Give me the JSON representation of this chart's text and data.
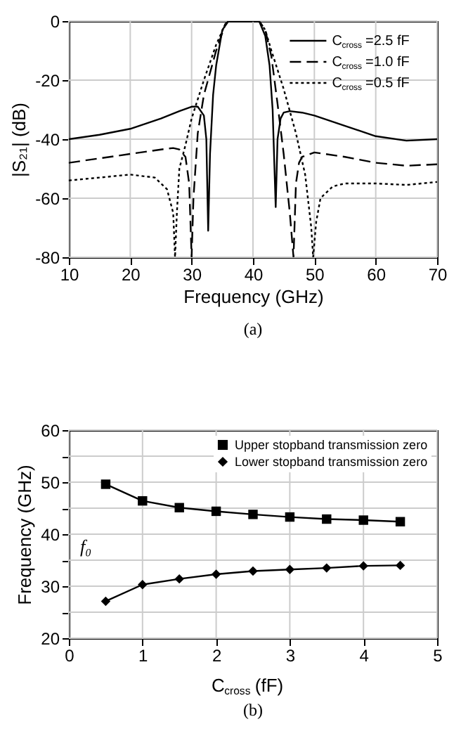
{
  "chart_data": [
    {
      "type": "line",
      "xlabel": "Frequency (GHz)",
      "ylabel": "|S₂₁| (dB)",
      "xlim": [
        10,
        70
      ],
      "ylim": [
        -80,
        0
      ],
      "xticks": [
        10,
        20,
        30,
        40,
        50,
        60,
        70
      ],
      "yticks": [
        -80,
        -60,
        -40,
        -20,
        0
      ],
      "grid": true,
      "legend": "top right",
      "marker": "none",
      "annotations": [
        "(a)"
      ],
      "series": [
        {
          "name": "C$_{cross}$=2.5 fF",
          "color": "#000000",
          "line_style": "solid",
          "x": [
            10,
            15,
            20,
            25,
            28,
            30,
            31,
            32,
            32.4,
            32.7,
            33,
            33.5,
            34,
            35,
            36,
            38,
            40,
            41,
            42,
            42.7,
            43.2,
            43.7,
            44,
            44.5,
            45,
            46,
            48,
            50,
            55,
            60,
            65,
            70
          ],
          "values": [
            -40,
            -38.5,
            -36.5,
            -33,
            -30.5,
            -29,
            -29,
            -32,
            -40,
            -71,
            -45,
            -25,
            -15,
            -3,
            0,
            0,
            0,
            0,
            -5,
            -15,
            -30,
            -63,
            -40,
            -33,
            -31,
            -30.5,
            -31,
            -32,
            -35.5,
            -39,
            -40.5,
            -40
          ]
        },
        {
          "name": "C$_{cross}$=1.0 fF",
          "color": "#000000",
          "line_style": "dashed",
          "x": [
            10,
            15,
            20,
            25,
            27,
            28,
            29,
            29.6,
            30,
            30.3,
            31,
            32,
            34,
            35.5,
            36,
            38,
            40,
            41,
            42,
            43,
            44,
            45,
            46,
            46.6,
            47,
            47.5,
            48,
            50,
            55,
            60,
            65,
            70
          ],
          "values": [
            -48,
            -46.5,
            -45,
            -43.5,
            -43,
            -43.5,
            -46,
            -55,
            -80,
            -60,
            -38,
            -25,
            -10,
            -1,
            0,
            0,
            0,
            0,
            -3,
            -12,
            -28,
            -45,
            -65,
            -80,
            -55,
            -48,
            -46,
            -44.5,
            -46,
            -48,
            -49,
            -48.5
          ]
        },
        {
          "name": "C$_{cross}$=0.5 fF",
          "color": "#000000",
          "line_style": "dotted",
          "x": [
            10,
            15,
            20,
            24,
            26,
            27,
            27.3,
            27.6,
            28,
            29,
            30,
            32,
            34,
            35.5,
            36,
            38,
            40,
            41,
            42,
            43,
            45,
            47,
            48.5,
            49.5,
            49.8,
            50.3,
            51,
            53,
            55,
            60,
            65,
            70
          ],
          "values": [
            -54,
            -53,
            -52,
            -53,
            -57,
            -65,
            -80,
            -65,
            -50,
            -42,
            -33,
            -20,
            -8,
            -1,
            0,
            0,
            0,
            0,
            -3,
            -10,
            -23,
            -38,
            -52,
            -70,
            -80,
            -68,
            -60,
            -56,
            -55,
            -55,
            -55.5,
            -54.5
          ]
        }
      ]
    },
    {
      "type": "line",
      "xlabel": "C$_{cross}$ (fF)",
      "ylabel": "Frequency (GHz)",
      "xlim": [
        0,
        5
      ],
      "ylim": [
        20,
        60
      ],
      "xticks": [
        0,
        1,
        2,
        3,
        4,
        5
      ],
      "yticks": [
        20,
        {
          "value": 25,
          "label": null
        },
        30,
        {
          "value": 35,
          "label": null
        },
        40,
        {
          "value": 45,
          "label": null
        },
        50,
        {
          "value": 55,
          "label": null
        },
        60
      ],
      "grid": true,
      "legend": "top right",
      "line_style": "solid",
      "annotations": [
        "f₀",
        "(b)"
      ],
      "x": [
        0.5,
        1,
        1.5,
        2,
        2.5,
        3,
        3.5,
        4,
        4.5
      ],
      "series": [
        {
          "name": "Upper stopband transmission zero",
          "color": "#000000",
          "marker": "square",
          "values": [
            49.6,
            46.4,
            45.1,
            44.4,
            43.8,
            43.3,
            42.9,
            42.7,
            42.4
          ]
        },
        {
          "name": "Lower stopband transmission zero",
          "color": "#000000",
          "marker": "diamond",
          "values": [
            27.1,
            30.3,
            31.4,
            32.3,
            32.9,
            33.2,
            33.5,
            33.9,
            34.0
          ]
        }
      ]
    }
  ]
}
